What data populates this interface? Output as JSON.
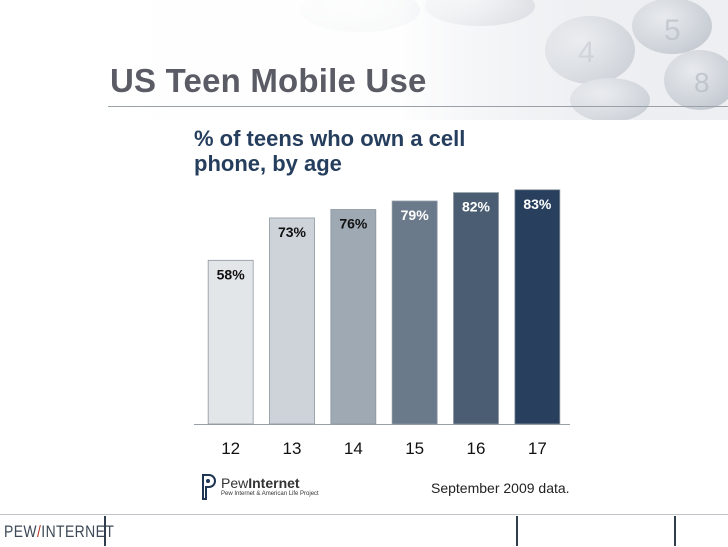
{
  "slide": {
    "title": "US Teen Mobile Use"
  },
  "chart_data": {
    "type": "bar",
    "title": "% of teens who own a cell phone, by age",
    "xlabel": "",
    "ylabel": "",
    "categories": [
      "12",
      "13",
      "14",
      "15",
      "16",
      "17"
    ],
    "values": [
      58,
      73,
      76,
      79,
      82,
      83
    ],
    "value_labels": [
      "58%",
      "73%",
      "76%",
      "79%",
      "82%",
      "83%"
    ],
    "ylim": [
      0,
      90
    ],
    "grid": false,
    "bar_colors": [
      "#e3e6e9",
      "#cdd3d9",
      "#9ea9b4",
      "#6b7a8b",
      "#4a5d72",
      "#283f5d"
    ]
  },
  "footer": {
    "logo_name_bold": "Pew",
    "logo_name_rest": "Internet",
    "logo_tagline": "Pew Internet & American Life Project",
    "note": "September 2009 data."
  },
  "bottom_bar": {
    "logo_left": "PEW",
    "logo_slash": "/",
    "logo_right": "INTERNET"
  },
  "colors": {
    "title": "#5b5b66",
    "subtitle": "#263e5e",
    "accent_red": "#b23a2a"
  }
}
